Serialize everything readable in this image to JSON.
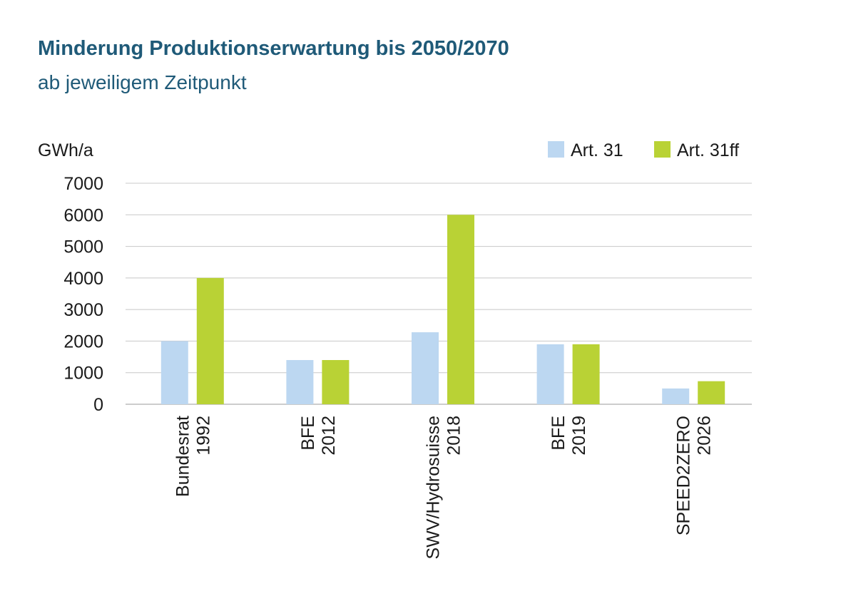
{
  "header": {
    "title": "Minderung Produktionserwartung bis 2050/2070",
    "subtitle": "ab jeweiligem Zeitpunkt"
  },
  "colors": {
    "title": "#1f5a78",
    "art31": "#bcd7f1",
    "art31ff": "#b9d235",
    "grid": "#c8c8c8"
  },
  "chart_data": {
    "type": "bar",
    "title": "Minderung Produktionserwartung bis 2050/2070",
    "subtitle": "ab jeweiligem Zeitpunkt",
    "ylabel": "GWh/a",
    "xlabel": "",
    "ylim": [
      0,
      7000
    ],
    "yticks": [
      0,
      1000,
      2000,
      3000,
      4000,
      5000,
      6000,
      7000
    ],
    "grid": true,
    "legend_position": "top-right",
    "categories": [
      [
        "Bundesrat",
        "1992"
      ],
      [
        "BFE",
        "2012"
      ],
      [
        "SWV/Hydrosuisse",
        "2018"
      ],
      [
        "BFE",
        "2019"
      ],
      [
        "SPEED2ZERO",
        "2026"
      ]
    ],
    "series": [
      {
        "name": "Art. 31",
        "color": "#bcd7f1",
        "values": [
          2000,
          1400,
          2280,
          1900,
          500
        ]
      },
      {
        "name": "Art. 31ff",
        "color": "#b9d235",
        "values": [
          4000,
          1400,
          6000,
          1900,
          730
        ]
      }
    ]
  }
}
